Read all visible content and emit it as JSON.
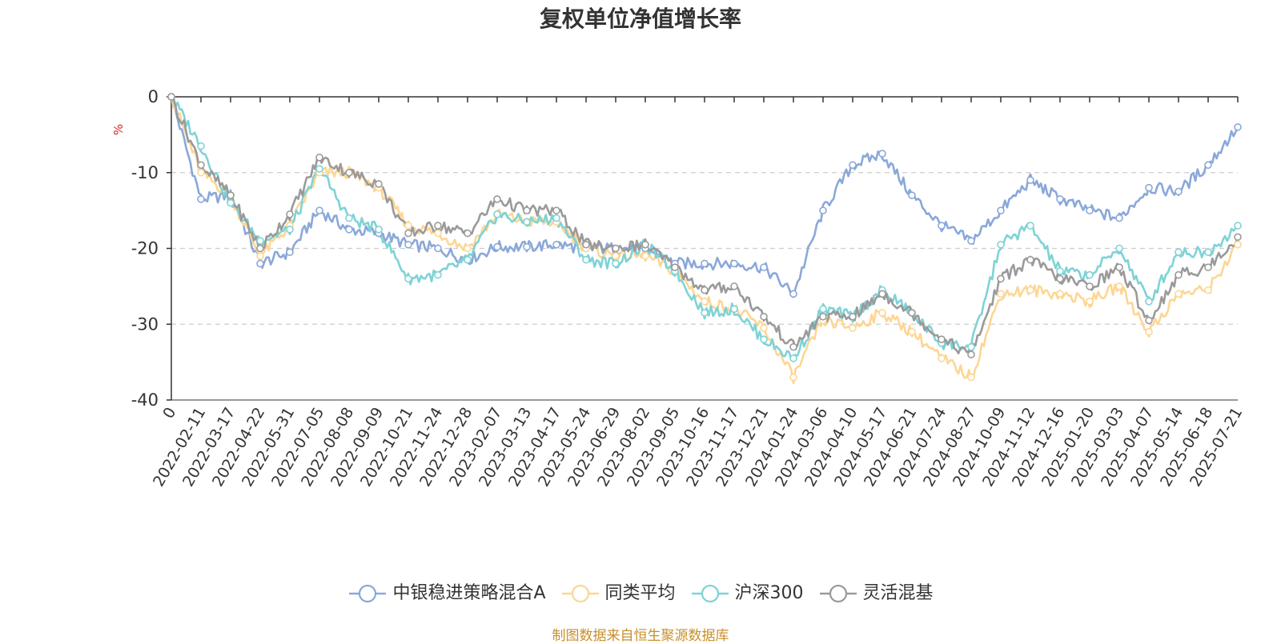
{
  "chart_data": {
    "type": "line",
    "title": "复权单位净值增长率",
    "ylabel": "%",
    "ylim": [
      -40,
      0
    ],
    "yticks": [
      0,
      -10,
      -20,
      -30,
      -40
    ],
    "grid": "horizontal dashed",
    "legend_position": "bottom",
    "source": "制图数据来自恒生聚源数据库",
    "x_tick_labels": [
      "0",
      "2022-02-11",
      "2022-03-17",
      "2022-04-22",
      "2022-05-31",
      "2022-07-05",
      "2022-08-08",
      "2022-09-09",
      "2022-10-21",
      "2022-11-24",
      "2022-12-28",
      "2023-02-07",
      "2023-03-13",
      "2023-04-17",
      "2023-05-24",
      "2023-06-29",
      "2023-08-02",
      "2023-09-05",
      "2023-10-16",
      "2023-11-17",
      "2023-12-21",
      "2024-01-24",
      "2024-03-06",
      "2024-04-10",
      "2024-05-17",
      "2024-06-21",
      "2024-07-24",
      "2024-08-27",
      "2024-10-09",
      "2024-11-12",
      "2024-12-16",
      "2025-01-20",
      "2025-03-03",
      "2025-04-07",
      "2025-05-14",
      "2025-06-18",
      "2025-07-21"
    ],
    "x": [
      "0",
      "2022-02-11",
      "2022-03-17",
      "2022-04-22",
      "2022-05-31",
      "2022-07-05",
      "2022-08-08",
      "2022-09-09",
      "2022-10-21",
      "2022-11-24",
      "2022-12-28",
      "2023-02-07",
      "2023-03-13",
      "2023-04-17",
      "2023-05-24",
      "2023-06-29",
      "2023-08-02",
      "2023-09-05",
      "2023-10-16",
      "2023-11-17",
      "2023-12-21",
      "2024-01-24",
      "2024-03-06",
      "2024-04-10",
      "2024-05-17",
      "2024-06-21",
      "2024-07-24",
      "2024-08-27",
      "2024-10-09",
      "2024-11-12",
      "2024-12-16",
      "2025-01-20",
      "2025-03-03",
      "2025-04-07",
      "2025-05-14",
      "2025-06-18",
      "2025-07-21"
    ],
    "series": [
      {
        "name": "中银稳进策略混合A",
        "color": "#8aa8d9",
        "values": [
          0,
          -13.5,
          -13,
          -22,
          -20.5,
          -15,
          -17.5,
          -18,
          -19.5,
          -20,
          -21.5,
          -19.8,
          -19.8,
          -19.5,
          -20,
          -20,
          -20,
          -22,
          -22,
          -22,
          -22.5,
          -26,
          -15,
          -9,
          -7.5,
          -13,
          -17,
          -19,
          -15,
          -11,
          -13.5,
          -15,
          -16,
          -12,
          -12.5,
          -9,
          -4
        ]
      },
      {
        "name": "同类平均",
        "color": "#fdd693",
        "values": [
          0,
          -10,
          -13,
          -21,
          -17,
          -10,
          -10,
          -12,
          -17,
          -18,
          -20,
          -15.5,
          -16.5,
          -16.5,
          -20,
          -21,
          -21,
          -23,
          -27,
          -28,
          -30.5,
          -37,
          -29.5,
          -30.5,
          -28.5,
          -31,
          -34.5,
          -37,
          -26,
          -25.5,
          -26,
          -27,
          -25,
          -31,
          -26,
          -25.5,
          -19.5
        ]
      },
      {
        "name": "沪深300",
        "color": "#7ed3d6",
        "values": [
          0,
          -6.5,
          -14,
          -19,
          -17.5,
          -9.5,
          -16,
          -17.5,
          -24,
          -23.5,
          -21.5,
          -15.5,
          -16.5,
          -16,
          -21.5,
          -22,
          -19.5,
          -23,
          -28.5,
          -28,
          -32,
          -34.5,
          -28,
          -29,
          -25.5,
          -28.5,
          -32.5,
          -33,
          -19.5,
          -17,
          -23,
          -23.5,
          -20,
          -27,
          -20.5,
          -20.5,
          -17
        ]
      },
      {
        "name": "灵活混基",
        "color": "#9a9a9a",
        "values": [
          0,
          -9,
          -13,
          -20,
          -15.5,
          -8,
          -10,
          -11.5,
          -18,
          -17,
          -18,
          -13.5,
          -15,
          -15,
          -19.5,
          -20,
          -19.5,
          -22.5,
          -25.5,
          -25,
          -29,
          -33,
          -29,
          -29,
          -26,
          -28.5,
          -32,
          -34,
          -24,
          -21.5,
          -24,
          -25,
          -22.5,
          -29.5,
          -23.5,
          -22.5,
          -18.5
        ]
      }
    ]
  }
}
